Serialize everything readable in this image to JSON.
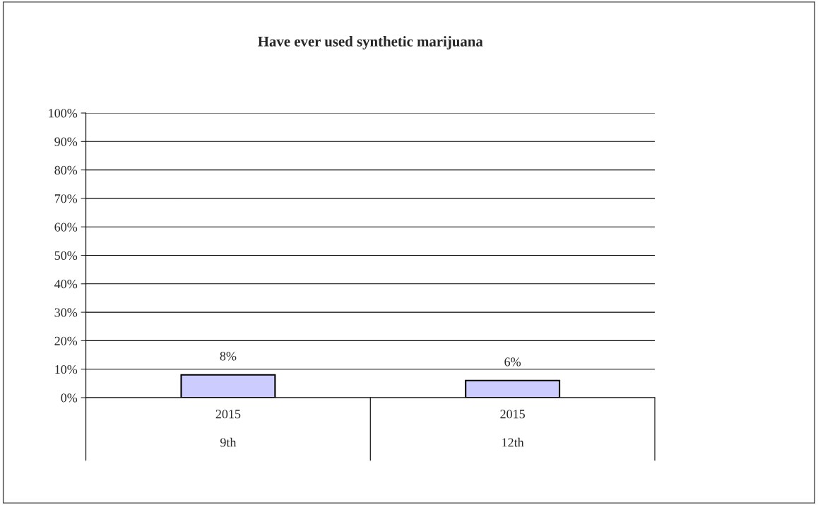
{
  "chart_data": {
    "type": "bar",
    "title": "Have ever used synthetic marijuana",
    "categories": [
      "2015\n9th",
      "2015\n12th"
    ],
    "values": [
      8,
      6
    ],
    "color": "#ccccff",
    "data_labels": true,
    "value_labels": [
      "8%",
      "6%"
    ],
    "ylim": [
      0,
      100
    ],
    "yticks": [
      {
        "value": 0,
        "label": "0%"
      },
      {
        "value": 10,
        "label": "10%"
      },
      {
        "value": 20,
        "label": "20%"
      },
      {
        "value": 30,
        "label": "30%"
      },
      {
        "value": 40,
        "label": "40%"
      },
      {
        "value": 50,
        "label": "50%"
      },
      {
        "value": 60,
        "label": "60%"
      },
      {
        "value": 70,
        "label": "70%"
      },
      {
        "value": 80,
        "label": "80%"
      },
      {
        "value": 90,
        "label": "90%"
      },
      {
        "value": 100,
        "label": "100%"
      }
    ],
    "grid": "y",
    "legend": false
  }
}
